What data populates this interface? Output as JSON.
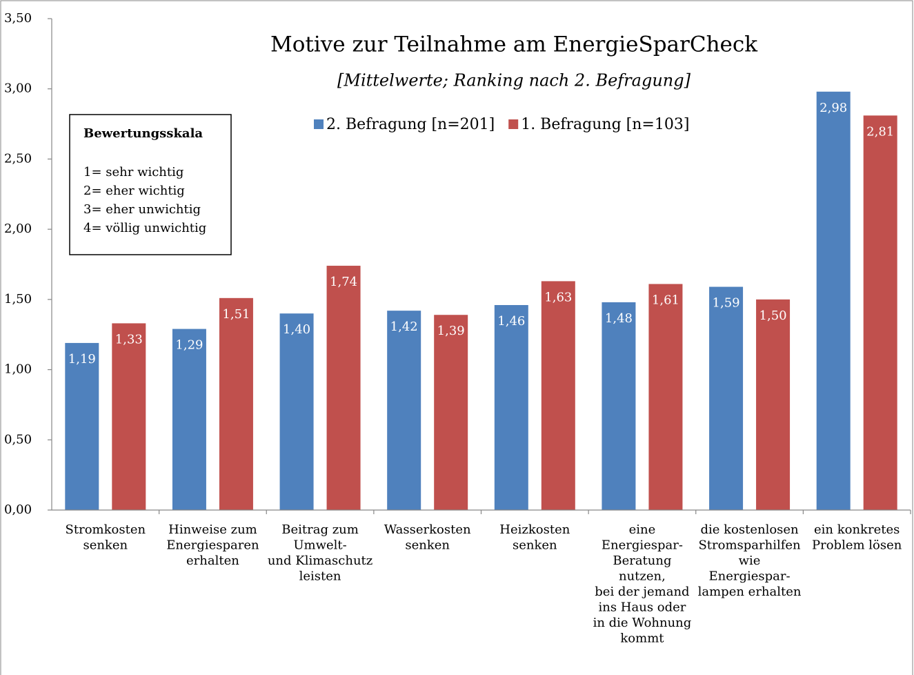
{
  "chart_data": {
    "type": "bar",
    "title": "Motive zur Teilnahme am EnergieSparCheck",
    "subtitle": "[Mittelwerte; Ranking nach 2. Befragung]",
    "categories": [
      "Stromkosten\nsenken",
      "Hinweise zum\nEnergiesparen\nerhalten",
      "Beitrag zum\nUmwelt-\nund Klimaschutz\nleisten",
      "Wasserkosten\nsenken",
      "Heizkosten\nsenken",
      "eine\nEnergiespar-\nBeratung\nnutzen,\nbei der jemand\nins Haus oder\nin die Wohnung\nkommt",
      "die kostenlosen\nStromsparhilfen\nwie\nEnergiespar-\nlampen erhalten",
      "ein konkretes\nProblem lösen"
    ],
    "series": [
      {
        "name": "2. Befragung [n=201]",
        "color": "#4f81bd",
        "values": [
          1.19,
          1.29,
          1.4,
          1.42,
          1.46,
          1.48,
          1.59,
          2.98
        ],
        "value_labels": [
          "1,19",
          "1,29",
          "1,40",
          "1,42",
          "1,46",
          "1,48",
          "1,59",
          "2,98"
        ]
      },
      {
        "name": "1. Befragung [n=103]",
        "color": "#c0504d",
        "values": [
          1.33,
          1.51,
          1.74,
          1.39,
          1.63,
          1.61,
          1.5,
          2.81
        ],
        "value_labels": [
          "1,33",
          "1,51",
          "1,74",
          "1,39",
          "1,63",
          "1,61",
          "1,50",
          "2,81"
        ]
      }
    ],
    "ylim": [
      0,
      3.5
    ],
    "yticks": [
      {
        "value": 0,
        "label": "0,00"
      },
      {
        "value": 0.5,
        "label": "0,50"
      },
      {
        "value": 1,
        "label": "1,00"
      },
      {
        "value": 1.5,
        "label": "1,50"
      },
      {
        "value": 2,
        "label": "2,00"
      },
      {
        "value": 2.5,
        "label": "2,50"
      },
      {
        "value": 3,
        "label": "3,00"
      },
      {
        "value": 3.5,
        "label": "3,50"
      }
    ],
    "legend": "top",
    "annotation": {
      "title": "Bewertungsskala",
      "lines": [
        "1= sehr wichtig",
        "2= eher wichtig",
        "3= eher unwichtig",
        "4= völlig unwichtig"
      ]
    }
  }
}
